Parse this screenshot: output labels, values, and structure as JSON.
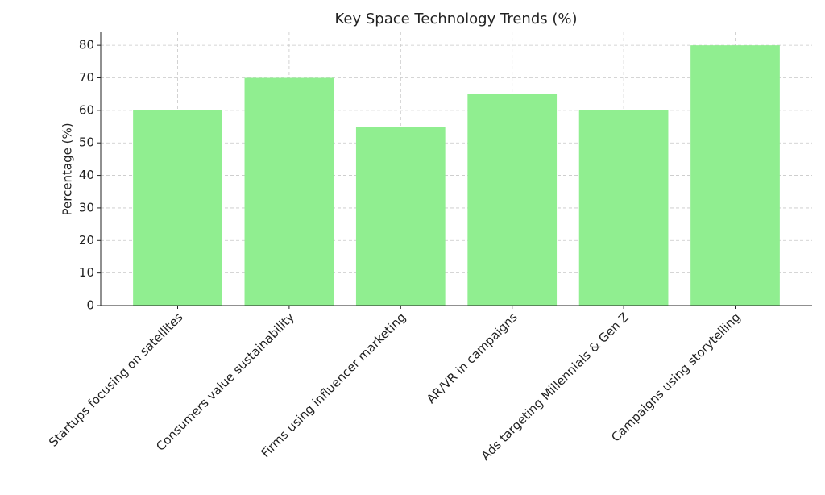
{
  "chart_data": {
    "type": "bar",
    "title": "Key Space Technology Trends (%)",
    "y_label": "Percentage (%)",
    "categories": [
      "Startups focusing on satellites",
      "Consumers value sustainability",
      "Firms using influencer marketing",
      "AR/VR in campaigns",
      "Ads targeting Millennials & Gen Z",
      "Campaigns using storytelling"
    ],
    "values": [
      60,
      70,
      55,
      65,
      60,
      80
    ],
    "color": "#90ee90",
    "ylim": [
      0,
      84
    ],
    "yticks": [
      0,
      10,
      20,
      30,
      40,
      50,
      60,
      70,
      80
    ],
    "grid": true
  }
}
